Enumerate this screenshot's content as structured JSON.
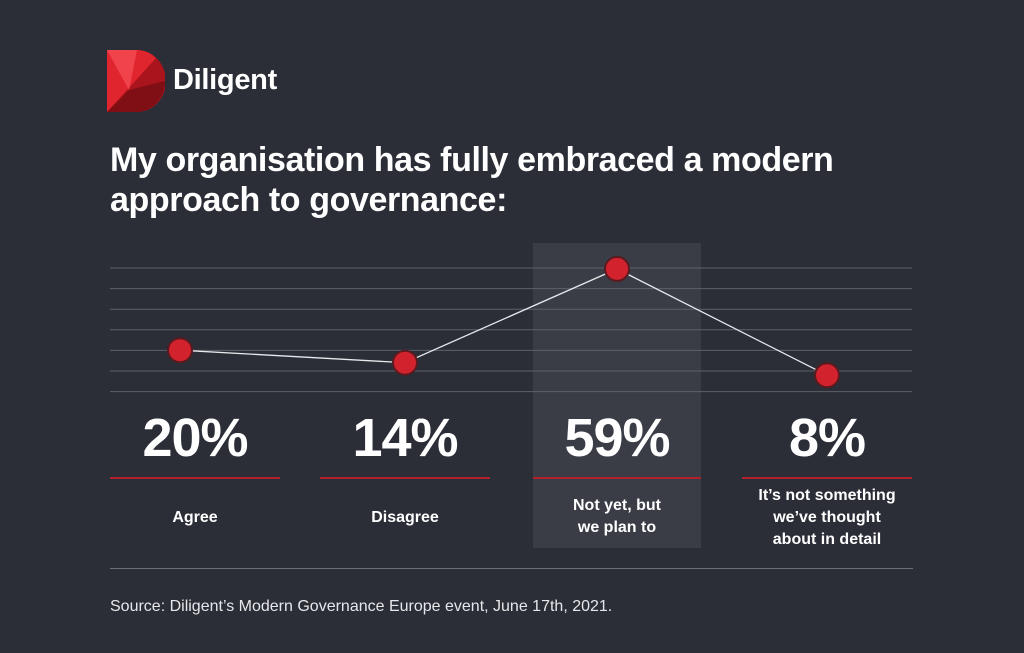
{
  "brand": {
    "name": "Diligent"
  },
  "colors": {
    "background": "#2b2e37",
    "accent": "#d1222d",
    "highlight": "#3a3d46"
  },
  "chart_data": {
    "type": "line",
    "title": "My organisation has fully embraced a modern approach to governance:",
    "categories": [
      "Agree",
      "Disagree",
      "Not yet, but we plan to",
      "It’s not something we’ve thought about in detail"
    ],
    "category_lines": [
      [
        "Agree"
      ],
      [
        "Disagree"
      ],
      [
        "Not yet, but",
        "we plan to"
      ],
      [
        "It’s not something",
        "we’ve thought",
        "about in detail"
      ]
    ],
    "values": [
      20,
      14,
      59,
      8
    ],
    "value_labels": [
      "20%",
      "14%",
      "59%",
      "8%"
    ],
    "highlight_index": 2,
    "grid": true,
    "source": "Source: Diligent’s Modern Governance Europe event, June 17th, 2021."
  }
}
